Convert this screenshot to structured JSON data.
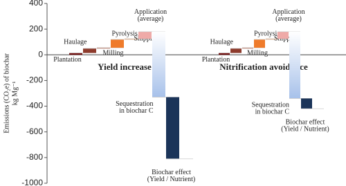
{
  "chart_data": {
    "type": "waterfall",
    "ylabel": [
      "Emissions (CO₂e) of biochar",
      "kg Mg⁻¹"
    ],
    "ylim": [
      -1000,
      400
    ],
    "yticks": [
      -1000,
      -800,
      -600,
      -400,
      -200,
      0,
      200,
      400
    ],
    "groups": [
      {
        "title": "Yield increase",
        "steps": [
          {
            "label": [
              "Plantation"
            ],
            "value": 15,
            "color": "#7a1c1c"
          },
          {
            "label": [
              "Haulage"
            ],
            "value": 35,
            "color": "#8e3b2c"
          },
          {
            "label": [
              "Milling"
            ],
            "value": 5,
            "color": "#b04a2a"
          },
          {
            "label": [
              "Pyrolysis"
            ],
            "value": 65,
            "color": "#ef7b2b"
          },
          {
            "label": [
              "Shipping"
            ],
            "value": 5,
            "color": "#f29a5a"
          },
          {
            "label": [
              "Application",
              "(average)"
            ],
            "value": 55,
            "color": "#efaaa8"
          },
          {
            "label": [
              "Sequestration",
              "in biochar C"
            ],
            "value": -510,
            "color": "#a7c1ea"
          },
          {
            "label": [
              "Biochar effect",
              "(Yield / Nutrient)"
            ],
            "value": -480,
            "color": "#1b3459"
          }
        ]
      },
      {
        "title": "Nitrification avoidance",
        "steps": [
          {
            "label": [
              "Plantation"
            ],
            "value": 15,
            "color": "#7a1c1c"
          },
          {
            "label": [
              "Haulage"
            ],
            "value": 35,
            "color": "#8e3b2c"
          },
          {
            "label": [
              "Milling"
            ],
            "value": 5,
            "color": "#b04a2a"
          },
          {
            "label": [
              "Pyrolysis"
            ],
            "value": 65,
            "color": "#ef7b2b"
          },
          {
            "label": [
              "Shipping"
            ],
            "value": 5,
            "color": "#f29a5a"
          },
          {
            "label": [
              "Application",
              "(average)"
            ],
            "value": 55,
            "color": "#efaaa8"
          },
          {
            "label": [
              "Sequestration",
              "in biochar C"
            ],
            "value": -520,
            "color": "#a7c1ea"
          },
          {
            "label": [
              "Biochar effect",
              "(Yield / Nutrient)"
            ],
            "value": -80,
            "color": "#1b3459"
          }
        ]
      }
    ]
  }
}
